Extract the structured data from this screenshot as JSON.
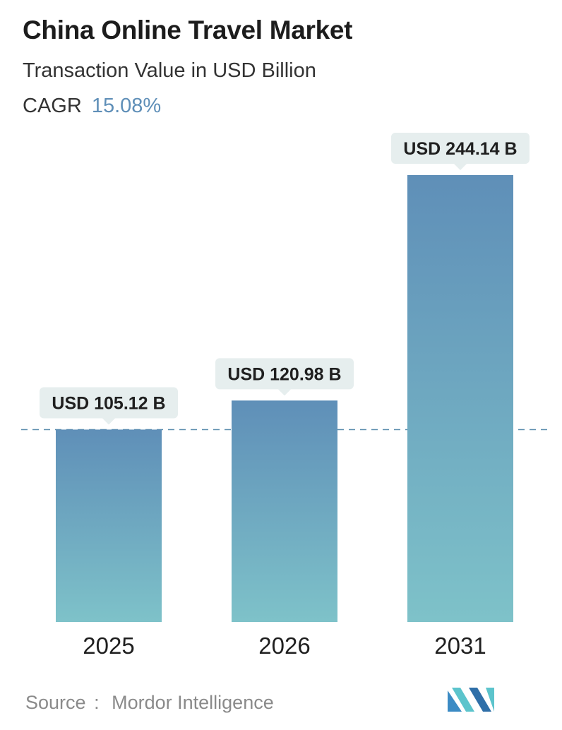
{
  "header": {
    "title": "China Online Travel Market",
    "subtitle": "Transaction Value in USD Billion",
    "cagr_label": "CAGR",
    "cagr_value": "15.08%"
  },
  "footer": {
    "source_label": "Source",
    "source_separator": ":",
    "source_name": "Mordor Intelligence"
  },
  "colors": {
    "bar_top": "#5f8fb8",
    "bar_bottom": "#7ec2c9",
    "label_bg": "#e6eeee",
    "dashed_line": "#5f8fb0",
    "accent": "#5f8fb8"
  },
  "chart_data": {
    "type": "bar",
    "categories": [
      "2025",
      "2026",
      "2031"
    ],
    "values": [
      105.12,
      120.98,
      244.14
    ],
    "data_labels": [
      "USD 105.12 B",
      "USD 120.98 B",
      "USD 244.14 B"
    ],
    "reference_line": 105.12,
    "grid": false,
    "legend": "none"
  }
}
